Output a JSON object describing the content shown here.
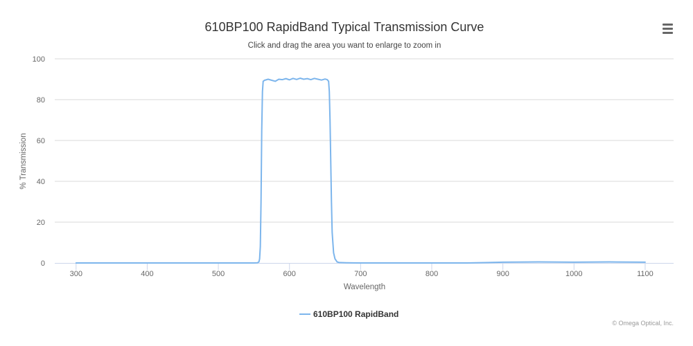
{
  "menu": {
    "icon": "hamburger-menu-icon"
  },
  "chart_data": {
    "type": "line",
    "title": "610BP100 RapidBand Typical Transmission Curve",
    "subtitle": "Click and drag the area you want to enlarge to zoom in",
    "xlabel": "Wavelength",
    "ylabel": "% Transmission",
    "xlim": [
      270,
      1140
    ],
    "ylim": [
      0,
      100
    ],
    "x_ticks": [
      300,
      400,
      500,
      600,
      700,
      800,
      900,
      1000,
      1100
    ],
    "y_ticks": [
      0,
      20,
      40,
      60,
      80,
      100
    ],
    "grid": true,
    "legend_position": "bottom-center",
    "credits": "© Omega Optical, Inc.",
    "colors": {
      "series": "#7cb5ec",
      "grid": "#d8d8d8",
      "axis": "#ccd6eb"
    },
    "series": [
      {
        "name": "610BP100 RapidBand",
        "points": [
          [
            300,
            0
          ],
          [
            400,
            0
          ],
          [
            500,
            0
          ],
          [
            550,
            0
          ],
          [
            555,
            0.1
          ],
          [
            557,
            0.5
          ],
          [
            558,
            2
          ],
          [
            559,
            8
          ],
          [
            560,
            30
          ],
          [
            561,
            65
          ],
          [
            562,
            84
          ],
          [
            563,
            89
          ],
          [
            565,
            89.5
          ],
          [
            570,
            90
          ],
          [
            575,
            89.5
          ],
          [
            580,
            89
          ],
          [
            585,
            90
          ],
          [
            590,
            89.8
          ],
          [
            595,
            90.3
          ],
          [
            600,
            89.7
          ],
          [
            605,
            90.4
          ],
          [
            610,
            89.9
          ],
          [
            615,
            90.5
          ],
          [
            620,
            90
          ],
          [
            625,
            90.3
          ],
          [
            630,
            89.8
          ],
          [
            635,
            90.4
          ],
          [
            640,
            90
          ],
          [
            645,
            89.6
          ],
          [
            650,
            90.1
          ],
          [
            653,
            89.8
          ],
          [
            655,
            89
          ],
          [
            656,
            84
          ],
          [
            657,
            70
          ],
          [
            658,
            50
          ],
          [
            659,
            30
          ],
          [
            660,
            15
          ],
          [
            662,
            5
          ],
          [
            664,
            2
          ],
          [
            667,
            0.5
          ],
          [
            670,
            0.2
          ],
          [
            680,
            0.1
          ],
          [
            700,
            0
          ],
          [
            800,
            0
          ],
          [
            850,
            0
          ],
          [
            880,
            0.2
          ],
          [
            900,
            0.4
          ],
          [
            950,
            0.5
          ],
          [
            1000,
            0.4
          ],
          [
            1050,
            0.5
          ],
          [
            1100,
            0.4
          ]
        ]
      }
    ]
  }
}
